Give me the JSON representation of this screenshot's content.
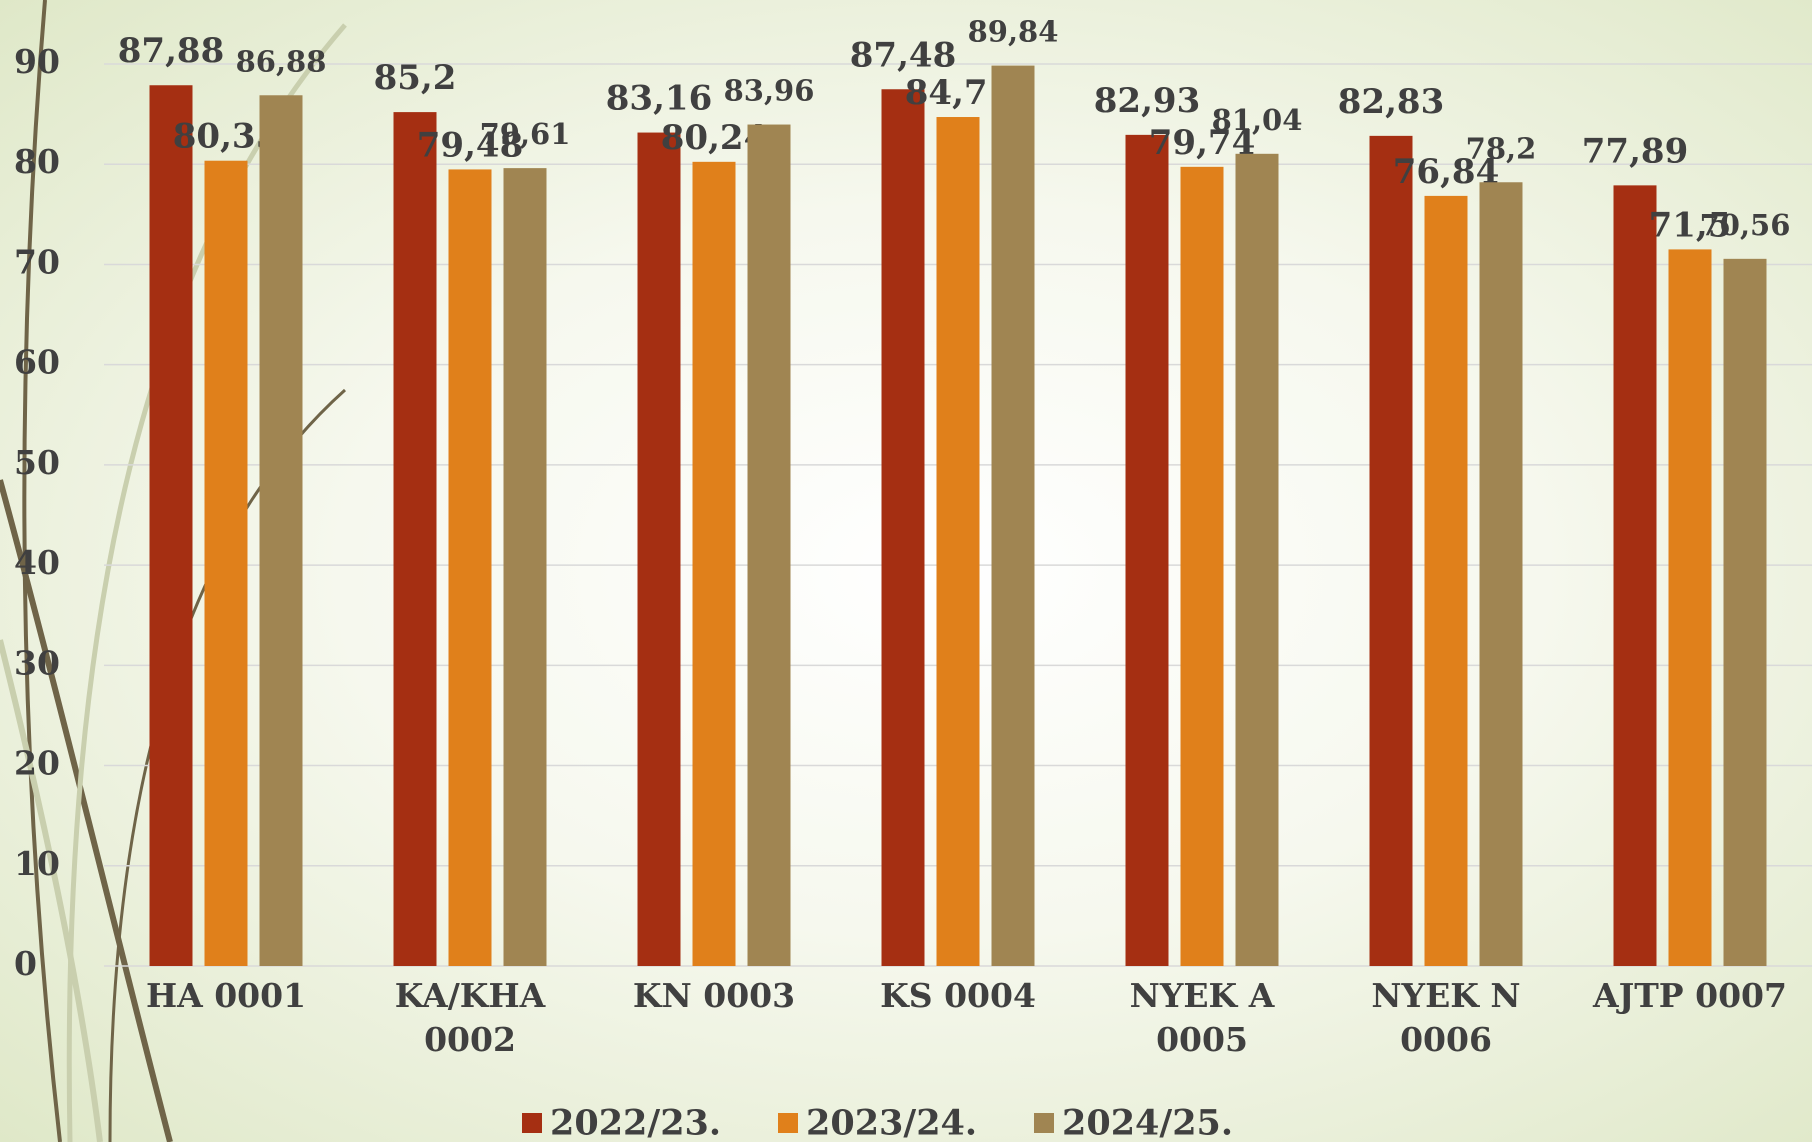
{
  "chart_data": {
    "type": "bar",
    "categories": [
      "HA 0001",
      "KA/KHA 0002",
      "KN 0003",
      "KS 0004",
      "NYEK A 0005",
      "NYEK N 0006",
      "AJTP 0007"
    ],
    "series": [
      {
        "name": "2022/23.",
        "color": "#a52f12",
        "values": [
          87.88,
          85.2,
          83.16,
          87.48,
          82.93,
          82.83,
          77.89
        ],
        "value_labels": [
          "87,88",
          "85,2",
          "83,16",
          "87,48",
          "82,93",
          "82,83",
          "77,89"
        ]
      },
      {
        "name": "2023/24.",
        "color": "#e0801b",
        "values": [
          80.35,
          79.48,
          80.24,
          84.71,
          79.74,
          76.84,
          71.5
        ],
        "value_labels": [
          "80,35",
          "79,48",
          "80,24",
          "84,71",
          "79,74",
          "76,84",
          "71,5"
        ]
      },
      {
        "name": "2024/25.",
        "color": "#a08552",
        "values": [
          86.88,
          79.61,
          83.96,
          89.84,
          81.04,
          78.2,
          70.56
        ],
        "value_labels": [
          "86,88",
          "79,61",
          "83,96",
          "89,84",
          "81,04",
          "78,2",
          "70,56"
        ]
      }
    ],
    "ylim": [
      0,
      90
    ],
    "yticks": [
      0,
      10,
      20,
      30,
      40,
      50,
      60,
      70,
      80,
      90
    ],
    "grid": true,
    "legend": "bottom"
  }
}
